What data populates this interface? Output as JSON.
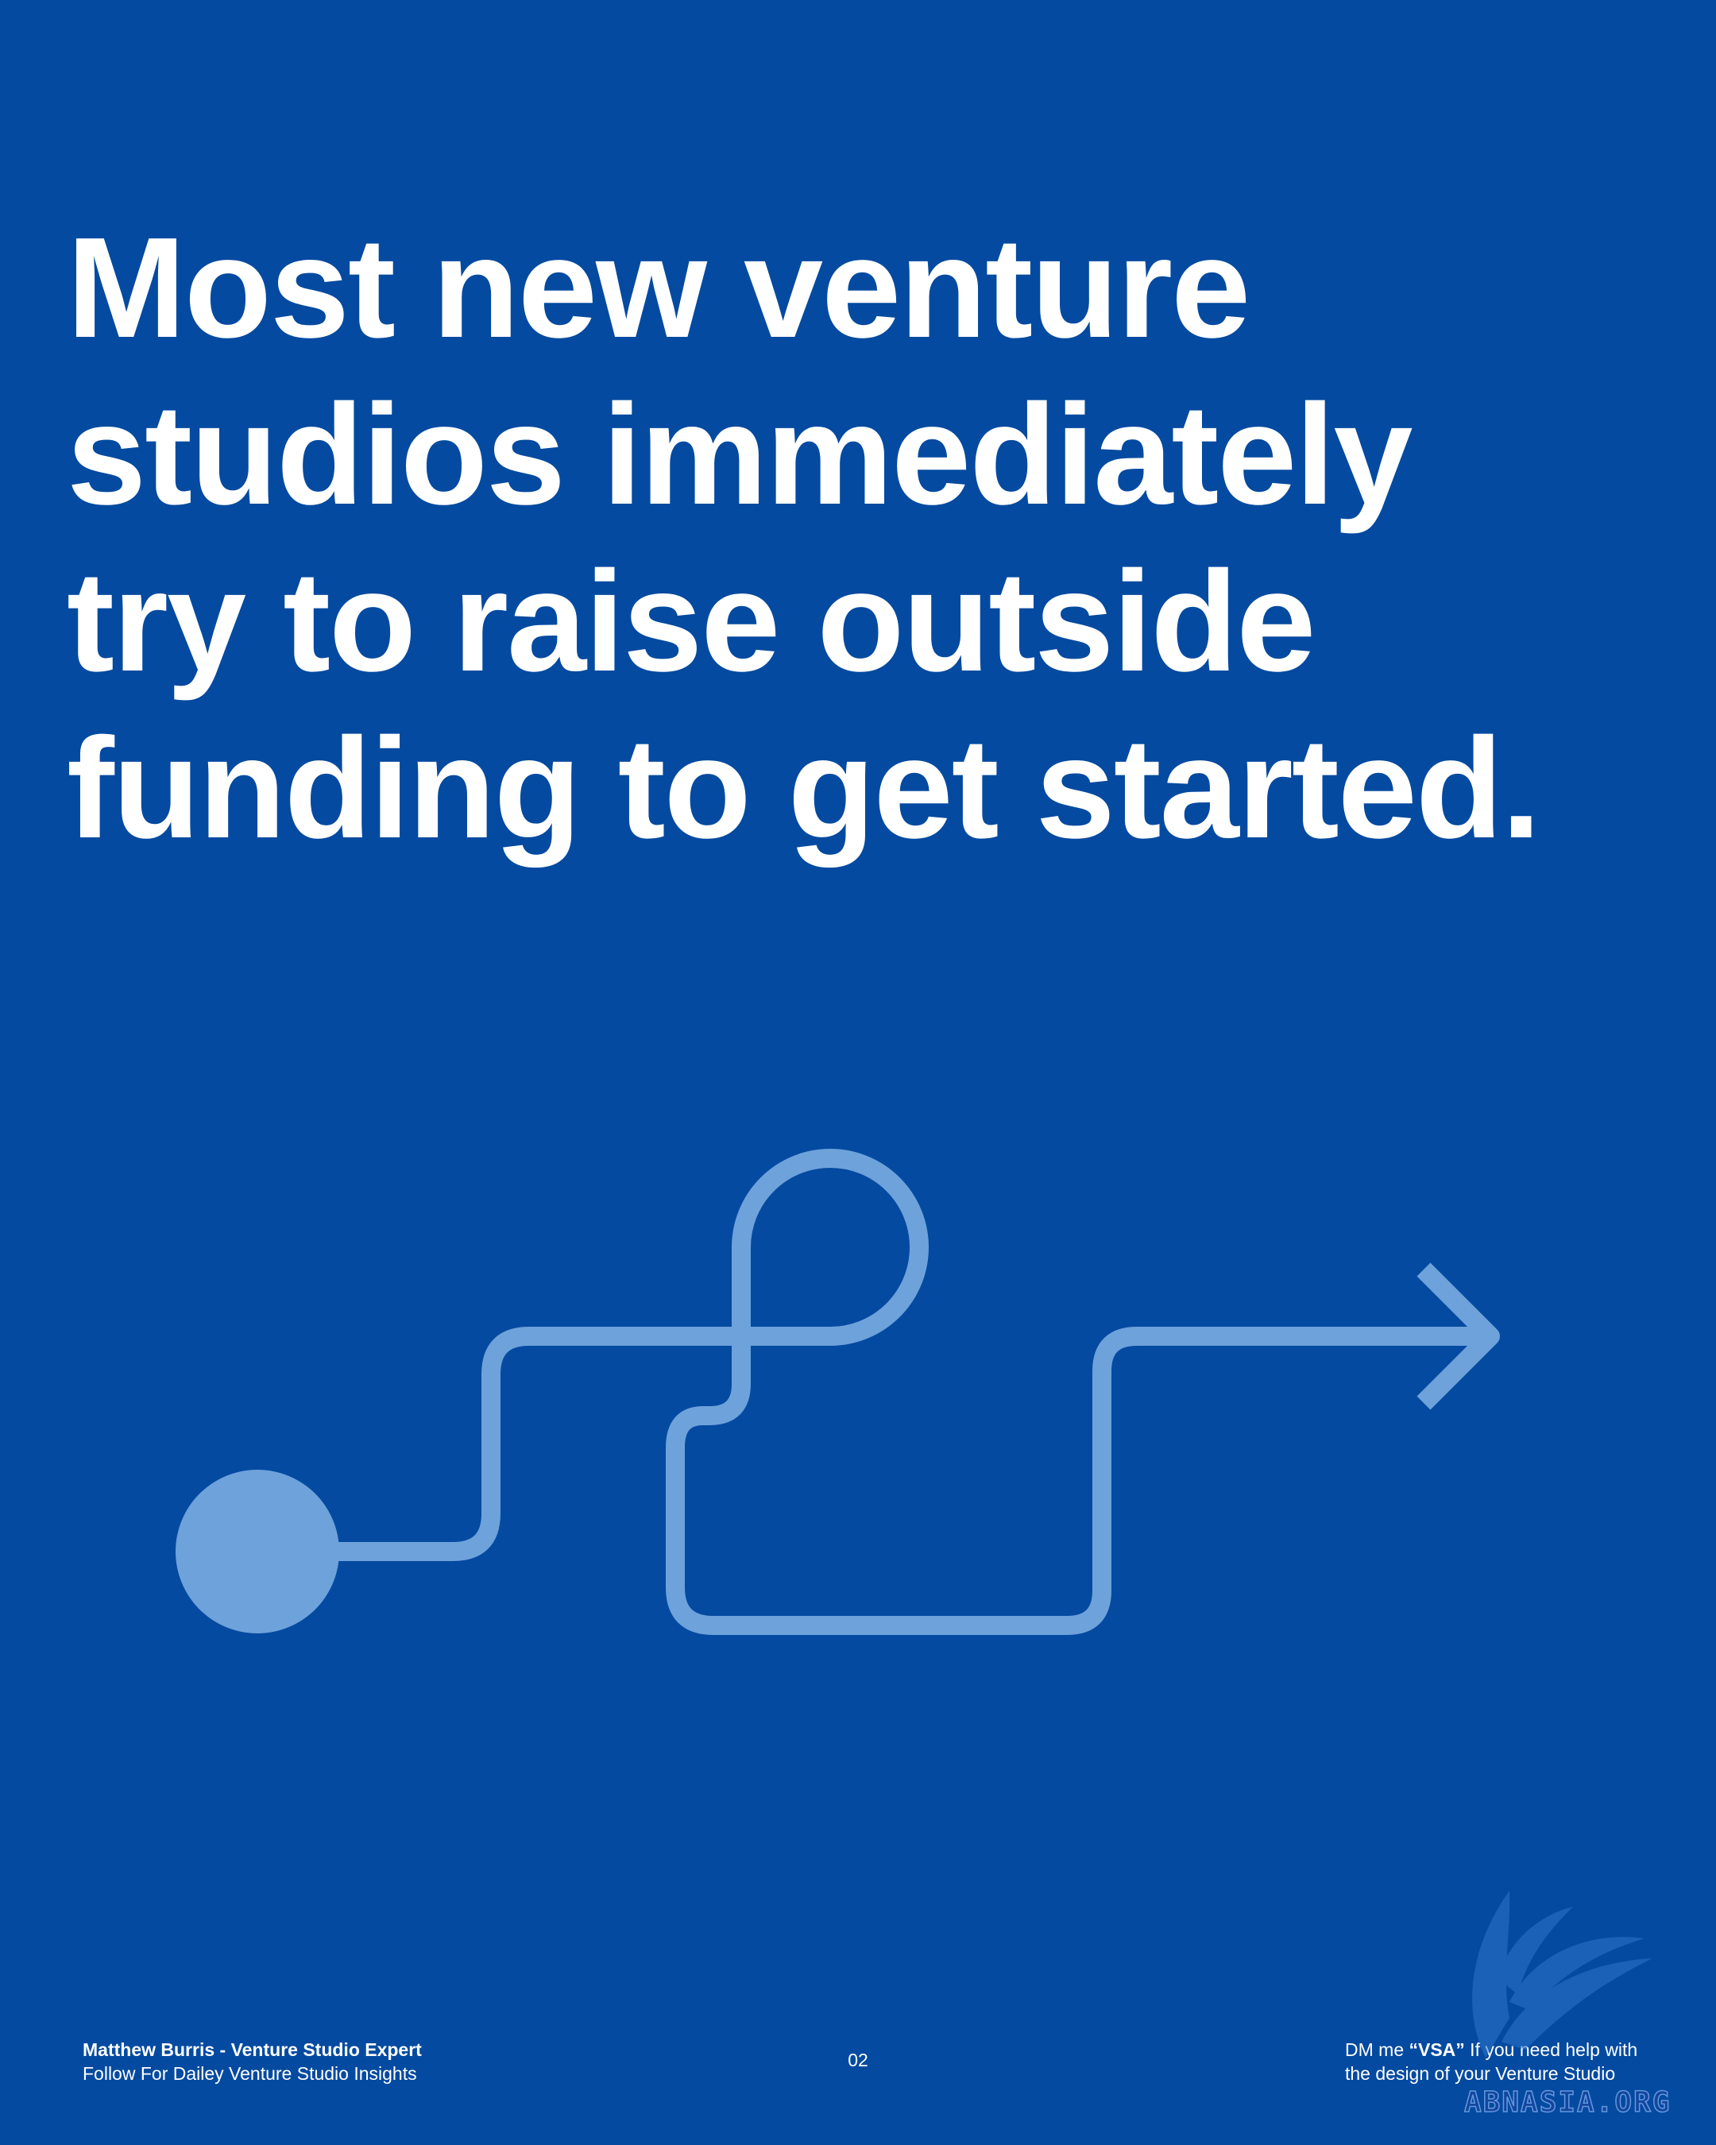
{
  "colors": {
    "background": "#044aa0",
    "headline": "#ffffff",
    "path": "#6ea2db",
    "footer_text": "#ffffff"
  },
  "headline": {
    "lines": [
      "Most new venture",
      "studios immediately",
      "try to raise outside",
      "funding to get started."
    ]
  },
  "graphic": {
    "icon": "winding-path-arrow-icon"
  },
  "footer": {
    "author": "Matthew Burris - Venture Studio Expert",
    "tagline": "Follow For Dailey Venture Studio Insights",
    "page_number": "02",
    "cta_prefix": "DM me ",
    "cta_keyword": "“VSA”",
    "cta_suffix": " If you need help with",
    "cta_line2": "the design of your Venture Studio"
  },
  "watermark": {
    "text": "ABNASIA.ORG"
  }
}
